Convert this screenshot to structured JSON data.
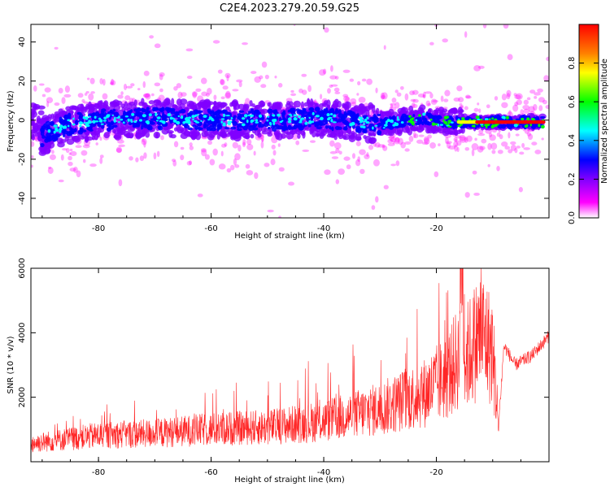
{
  "title": "C2E4.2023.279.20.59.G25",
  "chart_data": [
    {
      "type": "heatmap",
      "xlabel": "Height of straight line (km)",
      "ylabel": "Frequency (Hz)",
      "xlim": [
        -92,
        0
      ],
      "ylim": [
        -50,
        49
      ],
      "xticks": [
        -80,
        -60,
        -40,
        -20
      ],
      "yticks": [
        -40,
        -20,
        0,
        20,
        40
      ],
      "colorbar": {
        "label": "Normalized spectral amplitude",
        "range": [
          0.0,
          1.0
        ],
        "ticks": [
          0.0,
          0.2,
          0.4,
          0.6,
          0.8
        ],
        "colormap": [
          "#ffffff",
          "#ff00ff",
          "#8000ff",
          "#0000ff",
          "#00ffff",
          "#00ff00",
          "#ffff00",
          "#ff8000",
          "#ff0000"
        ]
      },
      "ridge": [
        {
          "x": -90,
          "f": -8
        },
        {
          "x": -85,
          "f": -2
        },
        {
          "x": -80,
          "f": 0
        },
        {
          "x": -70,
          "f": 1
        },
        {
          "x": -60,
          "f": 0
        },
        {
          "x": -50,
          "f": 0
        },
        {
          "x": -40,
          "f": 1
        },
        {
          "x": -30,
          "f": -2
        },
        {
          "x": -22,
          "f": 1
        },
        {
          "x": -18,
          "f": -1
        },
        {
          "x": -12,
          "f": -1
        },
        {
          "x": -1,
          "f": -1
        }
      ]
    },
    {
      "type": "line",
      "xlabel": "Height of straight line (km)",
      "ylabel": "SNR (10 * v/v)",
      "xlim": [
        -92,
        0
      ],
      "ylim": [
        0,
        6000
      ],
      "xticks": [
        -80,
        -60,
        -40,
        -20
      ],
      "yticks": [
        2000,
        4000,
        6000
      ],
      "color": "#ff0000",
      "trend": [
        {
          "x": -92,
          "y": 450
        },
        {
          "x": -80,
          "y": 650
        },
        {
          "x": -70,
          "y": 700
        },
        {
          "x": -60,
          "y": 800
        },
        {
          "x": -50,
          "y": 850
        },
        {
          "x": -40,
          "y": 1000
        },
        {
          "x": -30,
          "y": 1300
        },
        {
          "x": -22,
          "y": 1700
        },
        {
          "x": -18,
          "y": 2100
        },
        {
          "x": -16,
          "y": 2600
        },
        {
          "x": -15.5,
          "y": 5800
        },
        {
          "x": -15,
          "y": 2500
        },
        {
          "x": -12,
          "y": 3200
        },
        {
          "x": -10,
          "y": 2700
        },
        {
          "x": -9,
          "y": 1000
        },
        {
          "x": -8,
          "y": 3600
        },
        {
          "x": -6,
          "y": 3000
        },
        {
          "x": -3,
          "y": 3300
        },
        {
          "x": -1,
          "y": 3700
        },
        {
          "x": 0,
          "y": 3900
        }
      ]
    }
  ]
}
